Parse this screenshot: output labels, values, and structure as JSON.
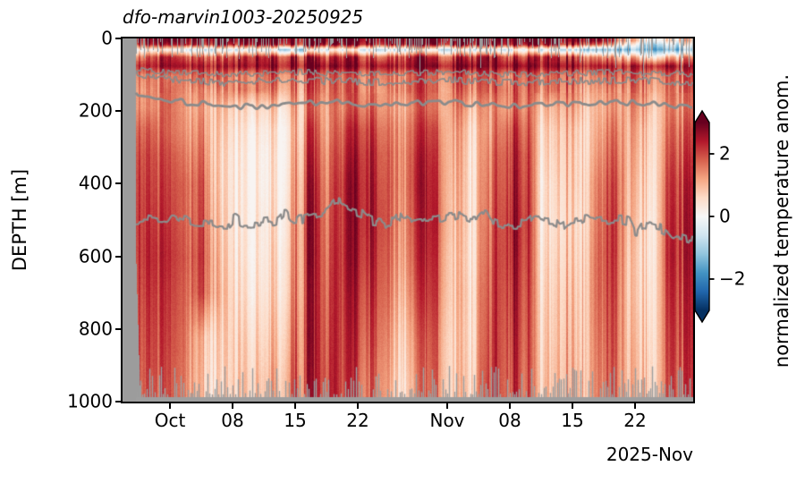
{
  "title": "dfo-marvin1003-20250925",
  "y_axis": {
    "label": "DEPTH [m]",
    "ticks": [
      0,
      200,
      400,
      600,
      800,
      1000
    ],
    "max_depth": 1000
  },
  "x_axis": {
    "ticks": [
      {
        "label": "Oct",
        "day": 5.3
      },
      {
        "label": "08",
        "day": 12.3
      },
      {
        "label": "15",
        "day": 19.3
      },
      {
        "label": "22",
        "day": 26.3
      },
      {
        "label": "Nov",
        "day": 36.3
      },
      {
        "label": "08",
        "day": 43.3
      },
      {
        "label": "15",
        "day": 50.3
      },
      {
        "label": "22",
        "day": 57.3
      }
    ],
    "offset_label": "2025-Nov",
    "span_days": 63.8,
    "no_data_days_at_start": 1.5
  },
  "colorbar": {
    "label": "normalized temperature anom.",
    "ticks": [
      {
        "label": "2",
        "value": 2
      },
      {
        "label": "0",
        "value": 0
      },
      {
        "label": "−2",
        "value": -2
      }
    ],
    "vmin": -3,
    "vmax": 3,
    "extend": "both",
    "cmap_name": "RdBu_r",
    "cmap_stops": [
      {
        "value": -3.0,
        "color": "#053061"
      },
      {
        "value": -2.4,
        "color": "#2166ac"
      },
      {
        "value": -1.8,
        "color": "#4393c3"
      },
      {
        "value": -1.2,
        "color": "#92c5de"
      },
      {
        "value": -0.6,
        "color": "#d1e5f0"
      },
      {
        "value": 0.0,
        "color": "#f7f7f7"
      },
      {
        "value": 0.6,
        "color": "#fddbc7"
      },
      {
        "value": 1.2,
        "color": "#f4a582"
      },
      {
        "value": 1.8,
        "color": "#d6604d"
      },
      {
        "value": 2.4,
        "color": "#b2182b"
      },
      {
        "value": 3.0,
        "color": "#67001f"
      }
    ]
  },
  "colors": {
    "no_data_gray": "#9c9c9c",
    "contour_gray": "#8b8b8b",
    "spike_gray": "#9e9e9e",
    "spine": "#000000",
    "background": "#ffffff"
  },
  "chart_data": {
    "type": "heatmap",
    "title": "dfo-marvin1003-20250925",
    "x_start": "2025-09-25",
    "x_end": "2025-11-28",
    "time_step_days": 2,
    "first_col_center_day": 1,
    "depth_levels_m": [
      5,
      15,
      30,
      50,
      75,
      100,
      140,
      190,
      250,
      320,
      400,
      500,
      600,
      700,
      820,
      950
    ],
    "values": [
      [
        3,
        3,
        3,
        3,
        3,
        3,
        3,
        3,
        3,
        3,
        3,
        3,
        3,
        3,
        3,
        3,
        3,
        3,
        3,
        3,
        3,
        3,
        3,
        3,
        3,
        3,
        3,
        2.2,
        0.6,
        0.3,
        0.5,
        0.8
      ],
      [
        2.7,
        2.7,
        2.5,
        2.7,
        2.7,
        2.4,
        2.5,
        2.7,
        2.5,
        2.7,
        2.7,
        2.5,
        2.7,
        2.7,
        2.5,
        2.7,
        2.7,
        2.5,
        2.7,
        2.5,
        2.7,
        2.7,
        2.5,
        2.7,
        2.5,
        2.3,
        2.1,
        1.2,
        -0.3,
        -0.6,
        -0.4,
        0
      ],
      [
        0.6,
        0.4,
        0.2,
        0,
        -0.3,
        -0.5,
        -0.3,
        0,
        -0.5,
        -0.7,
        -0.5,
        -0.2,
        0,
        -0.3,
        -0.5,
        -0.3,
        0,
        -0.3,
        -0.5,
        -0.3,
        -0.5,
        -0.3,
        0,
        -0.3,
        -0.5,
        -0.7,
        -0.9,
        -1.1,
        -1.4,
        -1.2,
        -1.4,
        -1.1
      ],
      [
        1.9,
        2.1,
        2.4,
        2.1,
        1.9,
        1.7,
        2.1,
        2.4,
        2.1,
        2.4,
        2.1,
        1.9,
        2.4,
        2.1,
        1.9,
        2.1,
        2.4,
        2.1,
        1.9,
        2.1,
        2.4,
        2.1,
        1.9,
        2.4,
        2.1,
        1.9,
        1.7,
        1.4,
        0.8,
        0.6,
        1,
        1.3
      ],
      [
        2.7,
        2.5,
        2.7,
        2.7,
        2.5,
        2.3,
        2.5,
        2.7,
        2.5,
        2.7,
        2.7,
        2.5,
        2.7,
        2.5,
        2.7,
        2.5,
        2.7,
        2.7,
        2.5,
        2.7,
        2.5,
        2.7,
        2.7,
        2.5,
        2.7,
        2.5,
        2.7,
        2.5,
        2.3,
        2.5,
        2.7,
        2.5
      ],
      [
        2,
        1.8,
        1.6,
        1.8,
        2,
        1.6,
        1.4,
        1.6,
        1.8,
        1.6,
        1.8,
        1.6,
        1.8,
        1.6,
        1.8,
        1.6,
        1.8,
        1.6,
        1.8,
        1.6,
        1.8,
        1.6,
        1.8,
        1.6,
        1.8,
        1.6,
        1.8,
        2,
        1.8,
        1.6,
        1.8,
        2
      ],
      [
        1.8,
        1.6,
        1.8,
        1.6,
        1.5,
        1.3,
        1.5,
        1.6,
        1.4,
        1.5,
        1.6,
        1.5,
        1.8,
        1.6,
        1.5,
        1.6,
        1.8,
        1.6,
        1.5,
        1.4,
        1.6,
        1.8,
        1.6,
        1.5,
        1.6,
        1.4,
        1.5,
        1.6,
        1.5,
        1.4,
        1.6,
        1.8
      ],
      [
        1.8,
        1.6,
        1.8,
        1.5,
        1.2,
        0.8,
        0.6,
        0.8,
        0.6,
        1,
        1.4,
        1.2,
        1.6,
        1.8,
        1.5,
        1.3,
        1.5,
        1.6,
        1.2,
        0.8,
        1.2,
        1.6,
        1.5,
        0.9,
        1.1,
        1,
        1.3,
        1.5,
        1.2,
        1,
        1.4,
        1.7
      ],
      [
        2.2,
        2,
        1.8,
        1.6,
        1.4,
        0.6,
        0.4,
        0.5,
        0.3,
        0.8,
        1.8,
        1.2,
        2,
        2.2,
        1.8,
        1.5,
        1.8,
        2,
        1,
        0.5,
        1.2,
        2,
        1.8,
        0.6,
        0.9,
        0.7,
        1.4,
        1.8,
        1,
        0.8,
        1.6,
        2
      ],
      [
        2.4,
        2.2,
        2,
        1.8,
        1.6,
        0.5,
        0.3,
        0.4,
        0.2,
        0.9,
        2,
        1.4,
        2.2,
        2.4,
        2,
        1.6,
        2,
        2.2,
        0.9,
        0.4,
        1.4,
        2.2,
        2,
        0.5,
        0.8,
        0.6,
        1.6,
        2,
        0.9,
        0.7,
        1.8,
        2.2
      ],
      [
        2.5,
        2.3,
        2.1,
        2,
        1.8,
        0.5,
        0.3,
        0.4,
        0.2,
        1,
        2.2,
        1.5,
        2.4,
        2.5,
        2.1,
        1.6,
        2.1,
        2.3,
        0.8,
        0.4,
        1.5,
        2.3,
        2.1,
        0.4,
        0.7,
        0.6,
        1.8,
        2.2,
        0.8,
        0.6,
        2,
        2.4
      ],
      [
        2.5,
        2.4,
        2.2,
        2,
        1.9,
        0.6,
        0.3,
        0.5,
        0.3,
        1.1,
        2.3,
        1.6,
        2.4,
        2.5,
        2.2,
        1.5,
        2,
        2.4,
        0.7,
        0.4,
        1.6,
        2.4,
        2.2,
        0.4,
        0.6,
        0.5,
        1.9,
        2.3,
        0.7,
        0.5,
        2.1,
        2.5
      ],
      [
        2.4,
        2.5,
        2.3,
        2.1,
        2,
        0.7,
        0.4,
        0.5,
        0.4,
        1.2,
        2.3,
        1.7,
        2.4,
        2.4,
        2.1,
        1.4,
        1.9,
        2.3,
        0.6,
        0.4,
        1.7,
        2.4,
        2.1,
        0.5,
        0.7,
        0.6,
        2,
        2.3,
        0.6,
        0.5,
        2.2,
        2.5
      ],
      [
        2.3,
        2.4,
        2.2,
        2,
        1.9,
        0.8,
        0.5,
        0.6,
        0.5,
        1.3,
        2.2,
        1.8,
        2.3,
        2.2,
        2,
        1.2,
        1.7,
        2.2,
        0.6,
        0.5,
        1.8,
        2.3,
        2,
        0.6,
        0.8,
        0.7,
        2,
        2.2,
        0.6,
        0.6,
        2.1,
        2.4
      ],
      [
        2.2,
        2.3,
        2.1,
        1.9,
        0.9,
        0.6,
        0.7,
        0.8,
        0.7,
        1.5,
        2.2,
        1.9,
        2.2,
        2,
        1.8,
        0.9,
        1.4,
        2,
        0.5,
        0.5,
        1.9,
        2.2,
        1.9,
        0.7,
        0.9,
        0.8,
        1.9,
        2.1,
        0.7,
        0.7,
        2,
        2.3
      ],
      [
        2.2,
        2.2,
        2,
        1.8,
        0.8,
        0.5,
        0.8,
        1,
        0.9,
        1.7,
        2.1,
        2,
        2.1,
        1.8,
        1.6,
        0.7,
        1.2,
        1.9,
        0.5,
        0.6,
        2,
        2.1,
        1.8,
        0.8,
        1,
        0.9,
        1.8,
        2,
        0.8,
        0.8,
        1.9,
        2.2
      ]
    ],
    "contour_ctrl_step_days": 4,
    "contours_m": {
      "upper_1": [
        80,
        92,
        96,
        98,
        95,
        93,
        96,
        98,
        95,
        93,
        96,
        99,
        97,
        95,
        93,
        96,
        98
      ],
      "upper_2": [
        95,
        112,
        118,
        122,
        118,
        115,
        118,
        121,
        118,
        115,
        118,
        122,
        119,
        116,
        114,
        118,
        121
      ],
      "main_thermocline": [
        140,
        168,
        178,
        188,
        185,
        180,
        176,
        182,
        179,
        176,
        180,
        186,
        182,
        178,
        176,
        182,
        192
      ],
      "deep": [
        480,
        500,
        505,
        512,
        506,
        498,
        465,
        505,
        500,
        494,
        505,
        512,
        504,
        497,
        500,
        522,
        556
      ]
    }
  }
}
